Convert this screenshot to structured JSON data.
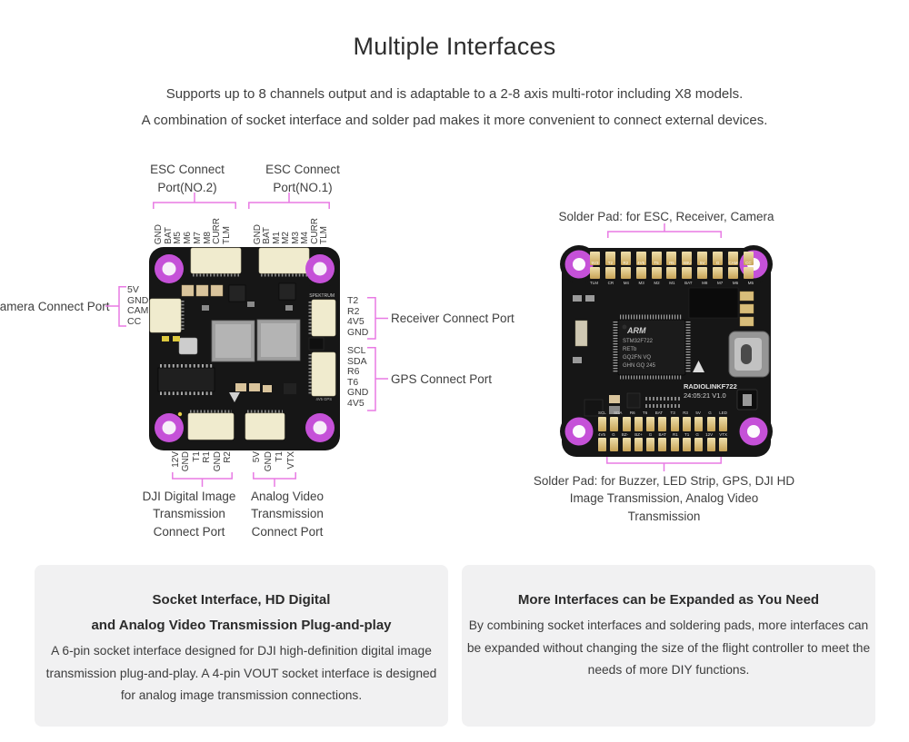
{
  "header": {
    "title": "Multiple Interfaces",
    "subtitle_line1": "Supports up to 8 channels output and is adaptable to a 2-8 axis multi-rotor including X8 models.",
    "subtitle_line2": "A combination of socket interface and solder pad makes it more convenient to connect external devices."
  },
  "colors": {
    "accent_bracket": "#e87ae4",
    "mount_hole_ring": "#c551d8",
    "board_black": "#161616",
    "connector_beige": "#f0ebce",
    "pad_gold": "#d2ab5e",
    "card_background": "#f1f1f2"
  },
  "left_diagram": {
    "esc_port2_label_lines": [
      "ESC Connect",
      "Port(NO.2)"
    ],
    "esc_port1_label_lines": [
      "ESC Connect",
      "Port(NO.1)"
    ],
    "esc_port2_pins": [
      "GND",
      "BAT",
      "M5",
      "M6",
      "M7",
      "M8",
      "CURR",
      "TLM"
    ],
    "esc_port1_pins": [
      "GND",
      "BAT",
      "M1",
      "M2",
      "M3",
      "M4",
      "CURR",
      "TLM"
    ],
    "camera_label": "Camera Connect Port",
    "camera_pins": [
      "5V",
      "GND",
      "CAM",
      "CC"
    ],
    "receiver_label": "Receiver Connect Port",
    "receiver_pins": [
      "T2",
      "R2",
      "4V5",
      "GND"
    ],
    "gps_label": "GPS Connect Port",
    "gps_pins": [
      "SCL",
      "SDA",
      "R6",
      "T6",
      "GND",
      "4V5"
    ],
    "dji_label_lines": [
      "DJI Digital Image",
      "Transmission",
      "Connect Port"
    ],
    "dji_pins": [
      "12V",
      "GND",
      "T1",
      "R1",
      "GND",
      "R2"
    ],
    "analog_label_lines": [
      "Analog Video",
      "Transmission",
      "Connect Port"
    ],
    "analog_pins": [
      "5V",
      "GND",
      "T1",
      "VTX"
    ],
    "board_silkscreen": {
      "spektrum": "SPEKTRUM",
      "gps": "4V5  GPS"
    }
  },
  "right_diagram": {
    "top_label": "Solder Pad: for ESC, Receiver, Camera",
    "bottom_label_lines": [
      "Solder Pad: for Buzzer, LED Strip, GPS, DJI HD",
      "Image Transmission, Analog Video",
      "Transmission"
    ],
    "top_pad_row1": [
      "5V3",
      "T2",
      "R2",
      "4V5",
      "T5",
      "R5",
      "SBU",
      "5V",
      "G",
      "CAM",
      "CC"
    ],
    "top_pad_row2": [
      "TLM",
      "CR",
      "M4",
      "M3",
      "M2",
      "M1",
      "BAT",
      "M8",
      "M7",
      "M6",
      "M5"
    ],
    "bottom_pad_row1": [
      "SCL",
      "SDA",
      "R6",
      "T6",
      "BAT",
      "T3",
      "R3",
      "5V",
      "G",
      "LED"
    ],
    "bottom_pad_row2": [
      "4V5",
      "G",
      "BZ-",
      "BZ+",
      "G",
      "BAT",
      "R1",
      "T1",
      "G",
      "12V",
      "VTX"
    ],
    "mcu": {
      "brand": "ARM",
      "lines": [
        "STM32F722",
        "RETb",
        "GQ2FN VQ",
        "GHN GQ 245"
      ]
    },
    "board_silkscreen": {
      "model": "RADIOLINKF722",
      "version": "24:05:21 V1.0"
    }
  },
  "cards": {
    "left": {
      "title_lines": [
        "Socket Interface, HD Digital",
        "and Analog Video Transmission Plug-and-play"
      ],
      "body": "A 6-pin socket interface designed for DJI high-definition digital image transmission plug-and-play. A 4-pin VOUT socket interface is designed for analog image transmission connections."
    },
    "right": {
      "title_lines": [
        "More Interfaces can be Expanded as You Need"
      ],
      "body": "By combining socket interfaces and soldering pads, more interfaces can be expanded without changing the size of the flight controller to meet the needs of more DIY functions."
    }
  }
}
